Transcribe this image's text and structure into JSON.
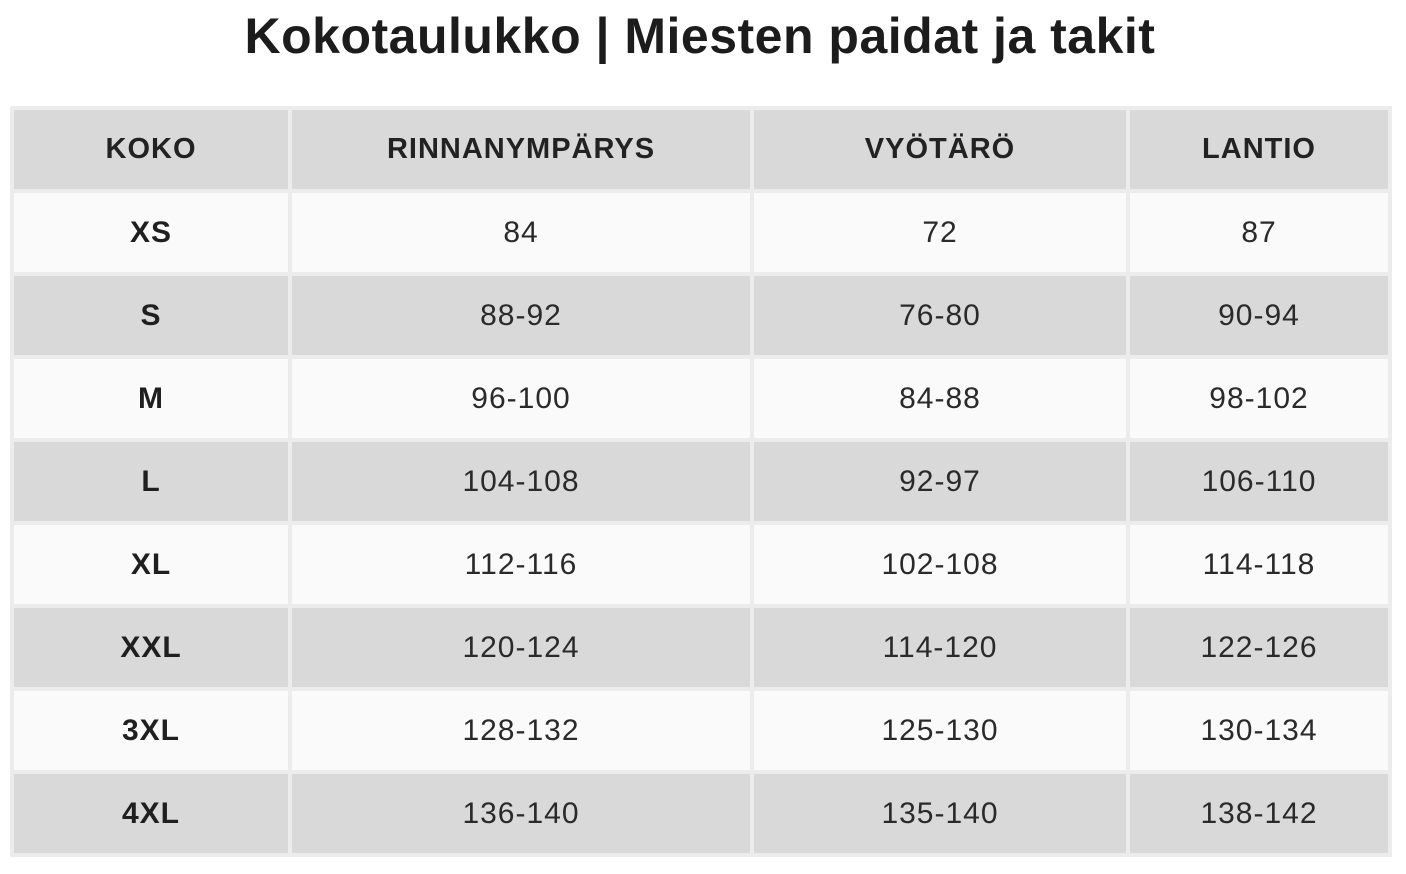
{
  "title": "Kokotaulukko | Miesten paidat ja takit",
  "table": {
    "headers": [
      "KOKO",
      "RINNANYMPÄRYS",
      "VYÖTÄRÖ",
      "LANTIO"
    ],
    "rows": [
      [
        "XS",
        "84",
        "72",
        "87"
      ],
      [
        "S",
        "88-92",
        "76-80",
        "90-94"
      ],
      [
        "M",
        "96-100",
        "84-88",
        "98-102"
      ],
      [
        "L",
        "104-108",
        "92-97",
        "106-110"
      ],
      [
        "XL",
        "112-116",
        "102-108",
        "114-118"
      ],
      [
        "XXL",
        "120-124",
        "114-120",
        "122-126"
      ],
      [
        "3XL",
        "128-132",
        "125-130",
        "130-134"
      ],
      [
        "4XL",
        "136-140",
        "135-140",
        "138-142"
      ]
    ]
  },
  "colors": {
    "header_bg": "#d9d9d9",
    "row_light": "#fafafa",
    "row_dark": "#d9d9d9",
    "grid": "#ececec",
    "text": "#1f1f1f"
  }
}
